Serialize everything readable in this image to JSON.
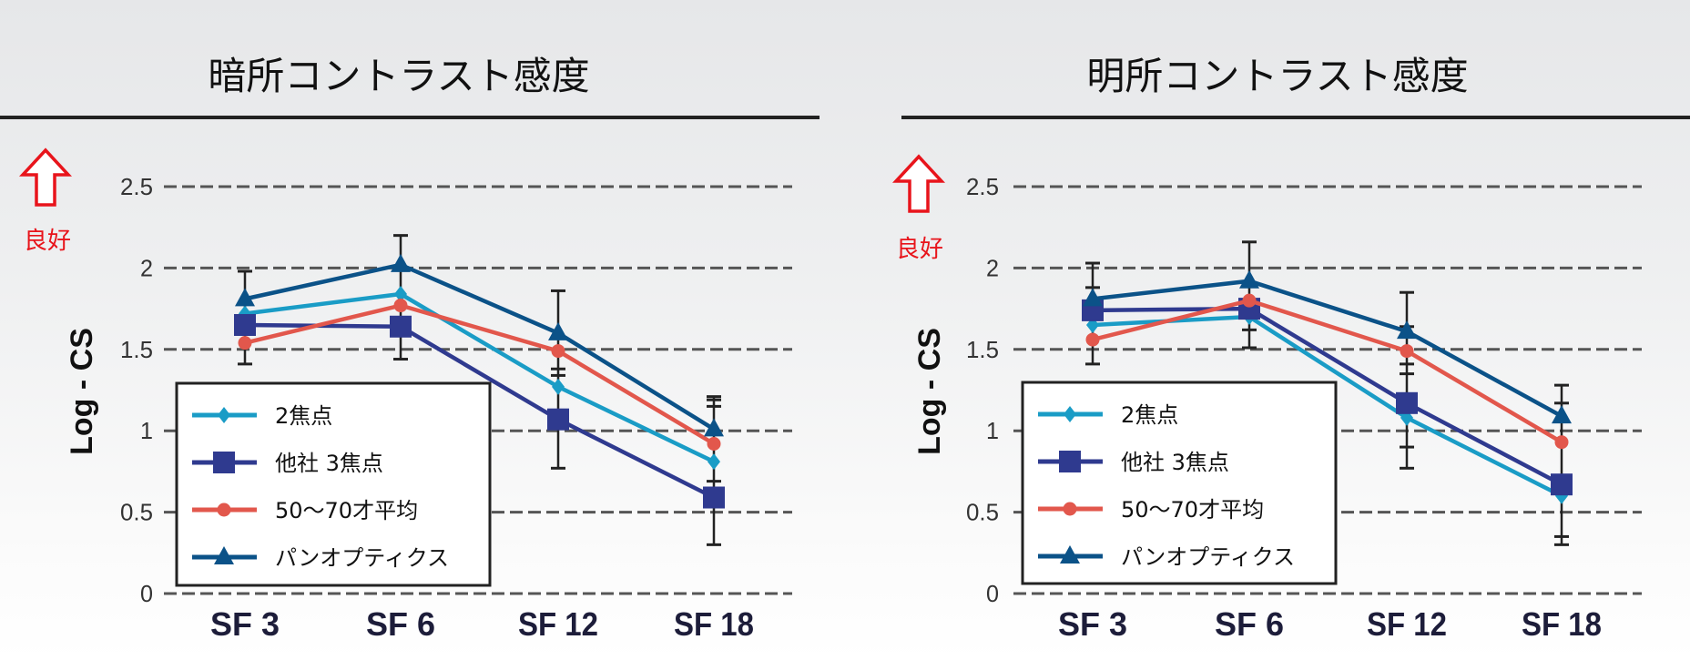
{
  "chart_data": [
    {
      "type": "line",
      "title": "暗所コントラスト感度",
      "ylabel": "Log - CS",
      "annotation": "良好",
      "categories": [
        "SF 3",
        "SF 6",
        "SF 12",
        "SF 18"
      ],
      "ylim": [
        0,
        2.5
      ],
      "yticks": [
        "0",
        "0.5",
        "1",
        "1.5",
        "2",
        "2.5"
      ],
      "grid": "dashed horizontal",
      "legend_position": "bottom-left",
      "series": [
        {
          "name": "2焦点",
          "color": "#1a9cc6",
          "marker": "diamond",
          "values": [
            1.72,
            1.84,
            1.27,
            0.81
          ]
        },
        {
          "name": "他社 3焦点",
          "color": "#2f3a8f",
          "marker": "square",
          "values": [
            1.65,
            1.64,
            1.07,
            0.59
          ]
        },
        {
          "name": "50～70才平均",
          "color": "#e2574c",
          "marker": "circle",
          "values": [
            1.54,
            1.77,
            1.49,
            0.92
          ]
        },
        {
          "name": "パンオプティクス",
          "color": "#0b5288",
          "marker": "triangle",
          "values": [
            1.81,
            2.02,
            1.6,
            1.01
          ]
        }
      ],
      "error_bars": [
        {
          "range": [
            1.41,
            1.98
          ],
          "caps": []
        },
        {
          "range": [
            1.44,
            2.2
          ],
          "caps": []
        },
        {
          "range": [
            0.77,
            1.86
          ],
          "caps": [
            1.38,
            1.34
          ]
        },
        {
          "range": [
            0.3,
            1.21
          ],
          "caps": [
            1.19,
            1.15,
            0.69
          ]
        }
      ]
    },
    {
      "type": "line",
      "title": "明所コントラスト感度",
      "ylabel": "Log - CS",
      "annotation": "良好",
      "categories": [
        "SF 3",
        "SF 6",
        "SF 12",
        "SF 18"
      ],
      "ylim": [
        0,
        2.5
      ],
      "yticks": [
        "0",
        "0.5",
        "1",
        "1.5",
        "2",
        "2.5"
      ],
      "grid": "dashed horizontal",
      "legend_position": "bottom-left",
      "series": [
        {
          "name": "2焦点",
          "color": "#1a9cc6",
          "marker": "diamond",
          "values": [
            1.65,
            1.7,
            1.08,
            0.6
          ]
        },
        {
          "name": "他社 3焦点",
          "color": "#2f3a8f",
          "marker": "square",
          "values": [
            1.74,
            1.75,
            1.17,
            0.67
          ]
        },
        {
          "name": "50～70才平均",
          "color": "#e2574c",
          "marker": "circle",
          "values": [
            1.56,
            1.8,
            1.49,
            0.93
          ]
        },
        {
          "name": "パンオプティクス",
          "color": "#0b5288",
          "marker": "triangle",
          "values": [
            1.81,
            1.92,
            1.61,
            1.09
          ]
        }
      ],
      "error_bars": [
        {
          "range": [
            1.41,
            2.03
          ],
          "caps": [
            1.88
          ]
        },
        {
          "range": [
            1.51,
            2.16
          ],
          "caps": [
            1.62
          ]
        },
        {
          "range": [
            0.77,
            1.85
          ],
          "caps": [
            1.64,
            1.41,
            1.35,
            0.9
          ]
        },
        {
          "range": [
            0.3,
            1.28
          ],
          "caps": [
            1.17,
            0.35
          ]
        }
      ]
    }
  ]
}
